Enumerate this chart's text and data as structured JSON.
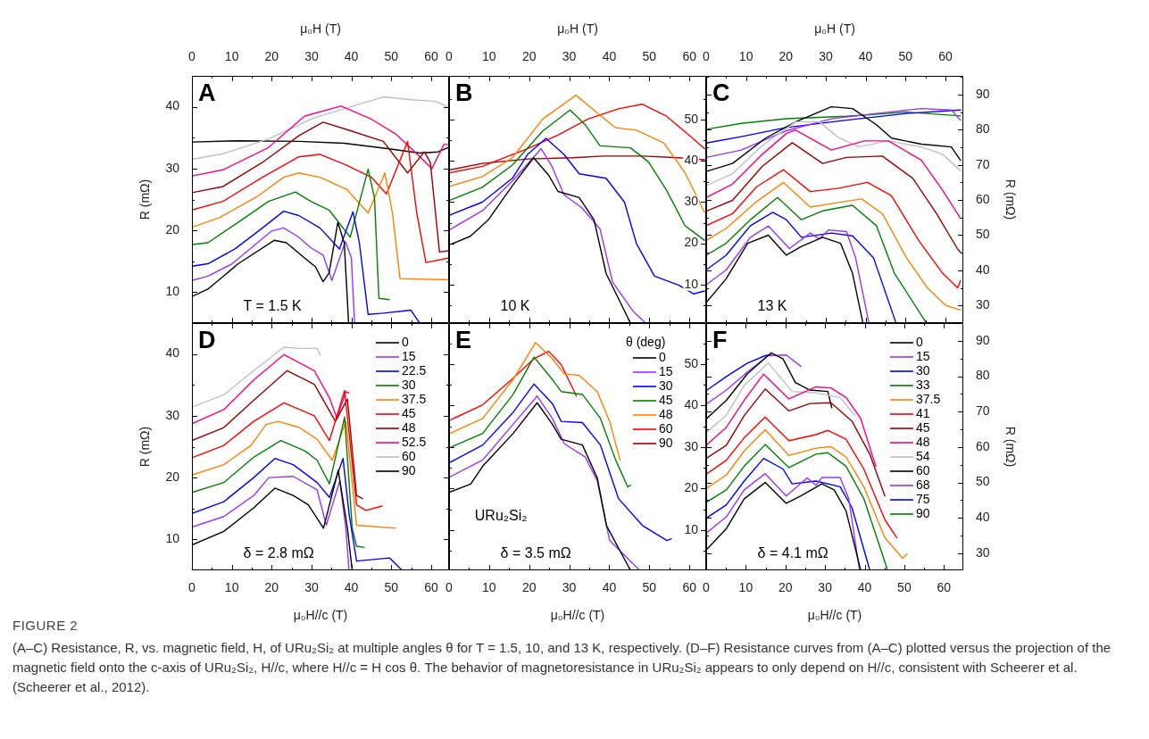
{
  "chart_data": [
    {
      "type": "line",
      "title": "A",
      "xlabel": "μ₀H (T)",
      "ylabel": "R (mΩ)",
      "marker": "none",
      "line_style": "solid",
      "xlim": [
        0,
        64.5
      ],
      "xticks": [
        0,
        10,
        20,
        30,
        40,
        50,
        60
      ],
      "ylim": [
        5,
        45
      ],
      "yticks": [
        10,
        20,
        30,
        40
      ],
      "annotations": [
        "T = 1.5 K"
      ],
      "series": [
        {
          "color": "#000000",
          "x": [
            0,
            4,
            11.6,
            20.7,
            23.7,
            28.3,
            31,
            32.9,
            34.4,
            36.6,
            38.2,
            39.3
          ],
          "values": [
            9.3,
            10.5,
            14.6,
            18.4,
            18,
            15.5,
            14.1,
            11.7,
            13.1,
            21.3,
            18,
            5
          ]
        },
        {
          "color": "#9933ff",
          "x": [
            0,
            4,
            10.1,
            20,
            23,
            26.8,
            29.8,
            32.9,
            35.1,
            38.5,
            40,
            40.8
          ],
          "values": [
            11.9,
            12.6,
            14.6,
            19.9,
            20.4,
            18.9,
            17.2,
            16,
            11.9,
            18.2,
            15.5,
            5
          ]
        },
        {
          "color": "#0000ff",
          "x": [
            0,
            4,
            10.8,
            17.7,
            23,
            26.8,
            32.1,
            37,
            40.4,
            42,
            44.2,
            48,
            54.9,
            57.1
          ],
          "values": [
            14.2,
            14.6,
            17,
            20.4,
            23.1,
            22.4,
            20.4,
            17,
            23,
            18,
            6.4,
            6.6,
            7.1,
            5
          ]
        },
        {
          "color": "#008000",
          "x": [
            0,
            4,
            11.6,
            19.2,
            26,
            29.8,
            34.4,
            39.7,
            44.2,
            45.8,
            46.9,
            49.5
          ],
          "values": [
            17.7,
            18,
            21.3,
            24.7,
            26.2,
            24.7,
            23.3,
            18.9,
            29.9,
            25.2,
            9,
            8.8
          ]
        },
        {
          "color": "#ff8000",
          "x": [
            0,
            7,
            16.2,
            23,
            26.8,
            32.1,
            38.9,
            44.2,
            48.4,
            50.3,
            52.2,
            64.3
          ],
          "values": [
            20.5,
            22.1,
            25.4,
            28.6,
            29.3,
            28.6,
            26.6,
            22.8,
            29.3,
            22.8,
            12.2,
            12
          ]
        },
        {
          "color": "#ff0000",
          "x": [
            0,
            7.8,
            17.7,
            26.8,
            32.1,
            38.9,
            45,
            48.8,
            54.1,
            56.4,
            58.7,
            64.3
          ],
          "values": [
            23.3,
            24.7,
            28.6,
            31.9,
            32.3,
            30.5,
            28.6,
            25.9,
            34.4,
            22.8,
            14.8,
            15.5
          ]
        },
        {
          "color": "#990000",
          "x": [
            0,
            7.8,
            17.7,
            26.8,
            32.9,
            38.9,
            48,
            54.1,
            58.3,
            59.8,
            62.1,
            64.3
          ],
          "values": [
            26.1,
            27.1,
            31,
            35.3,
            37.5,
            36.3,
            34.4,
            29.3,
            32.7,
            31,
            16.5,
            16.7
          ]
        },
        {
          "color": "#ff0080",
          "x": [
            0,
            7.8,
            19.2,
            28.3,
            37.4,
            45,
            51.1,
            56.4,
            60.2,
            63.2,
            64.3
          ],
          "values": [
            28.8,
            29.8,
            33.4,
            38.5,
            40.1,
            38,
            35.6,
            32.4,
            30,
            33.9,
            33.9
          ]
        },
        {
          "color": "#c0c0c0",
          "x": [
            0,
            7.8,
            19.2,
            30.6,
            40.4,
            48,
            55.6,
            60.9,
            64.3
          ],
          "values": [
            31.5,
            32.4,
            34.8,
            38.2,
            40.1,
            41.6,
            41.1,
            40.9,
            40
          ]
        },
        {
          "color": "#000000",
          "x": [
            0,
            11.6,
            26.8,
            38.2,
            49.5,
            57.1,
            61.7,
            64.3
          ],
          "values": [
            34.3,
            34.5,
            34.4,
            34.1,
            33.2,
            32.5,
            32.7,
            33.4
          ]
        }
      ]
    },
    {
      "type": "line",
      "title": "B",
      "xlabel": "μ₀H (T)",
      "marker": "none",
      "line_style": "solid",
      "xlim": [
        0,
        64.2
      ],
      "xticks": [
        0,
        10,
        20,
        30,
        40,
        50,
        60
      ],
      "y2lim": [
        0.6,
        60.7
      ],
      "y2ticks": [
        10,
        20,
        30,
        40,
        50
      ],
      "annotations": [
        "10 K"
      ],
      "series": [
        {
          "color": "#000000",
          "axis": "y2",
          "x": [
            0,
            5.3,
            9.8,
            15.8,
            21.1,
            24.9,
            27.2,
            32.5,
            36.2,
            39.2,
            45.3
          ],
          "values": [
            19.6,
            21.7,
            25.7,
            34,
            40.8,
            36.5,
            32.6,
            31.1,
            25.7,
            12.7,
            0.6
          ]
        },
        {
          "color": "#9933ff",
          "axis": "y2",
          "x": [
            0,
            8.3,
            15.8,
            23,
            25.7,
            28.7,
            33.2,
            37.7,
            40.8,
            46,
            49.1
          ],
          "values": [
            23.2,
            27.9,
            35.1,
            43,
            38.7,
            31.8,
            28.6,
            23.5,
            10.6,
            3.4,
            0.6
          ]
        },
        {
          "color": "#0000ff",
          "axis": "y2",
          "x": [
            0,
            8.3,
            15.8,
            19.6,
            24.2,
            28.7,
            32.5,
            39.2,
            43.8,
            46.8,
            51.3,
            57.4,
            61.1,
            63.8
          ],
          "values": [
            26.8,
            30,
            35.8,
            41.6,
            45.5,
            41.6,
            36.9,
            35.8,
            30,
            19.9,
            12,
            9.8,
            7.7,
            8.4
          ]
        },
        {
          "color": "#008000",
          "axis": "y2",
          "x": [
            0,
            8.3,
            15.8,
            23.4,
            30.2,
            34,
            37.7,
            45.3,
            49.8,
            54.3,
            58.9,
            63.8
          ],
          "values": [
            30.4,
            33.6,
            39,
            47.3,
            52.4,
            48.8,
            43.7,
            43.2,
            39.8,
            32.9,
            24.3,
            20.7
          ]
        },
        {
          "color": "#ff8000",
          "axis": "y2",
          "x": [
            0,
            8.3,
            15.8,
            23.4,
            31.7,
            37,
            41.5,
            46.8,
            53.6,
            58.9,
            63.8
          ],
          "values": [
            33.8,
            36.2,
            40.8,
            50.2,
            56,
            51.7,
            48.1,
            47.5,
            44.4,
            37.2,
            27.5
          ]
        },
        {
          "color": "#ff0000",
          "axis": "y2",
          "x": [
            0,
            8.3,
            19.6,
            27.2,
            34.7,
            42.3,
            48.3,
            54.3,
            60.4,
            63.8
          ],
          "values": [
            37.1,
            38.7,
            43,
            46.3,
            50.2,
            52.7,
            53.8,
            50.9,
            45.9,
            43
          ]
        },
        {
          "color": "#990000",
          "axis": "y2",
          "x": [
            0,
            8.3,
            19.6,
            30.9,
            38.5,
            48.3,
            57.4,
            63.8
          ],
          "values": [
            37.8,
            39.4,
            40.5,
            40.8,
            41.2,
            41.2,
            40.8,
            40.3
          ]
        }
      ]
    },
    {
      "type": "line",
      "title": "C",
      "xlabel": "μ₀H (T)",
      "y2label": "R (mΩ)",
      "marker": "none",
      "line_style": "solid",
      "xlim": [
        0,
        64.5
      ],
      "xticks": [
        0,
        10,
        20,
        30,
        40,
        50,
        60
      ],
      "y2lim": [
        25,
        95.3
      ],
      "y2ticks": [
        30,
        40,
        50,
        60,
        70,
        80,
        90
      ],
      "annotations": [
        "13 K"
      ],
      "series": [
        {
          "color": "#000000",
          "axis": "y2",
          "x": [
            0,
            5,
            10.4,
            15.6,
            20.1,
            23.9,
            29.2,
            33.7,
            36.7,
            39.3
          ],
          "values": [
            30.8,
            37.6,
            47.7,
            50,
            44.3,
            46.8,
            49.4,
            47.7,
            39.2,
            25.1
          ]
        },
        {
          "color": "#9933ff",
          "axis": "y2",
          "x": [
            0,
            5,
            11.1,
            15.6,
            20.9,
            26.1,
            28.4,
            30.7,
            35.2,
            37.5,
            40.8
          ],
          "values": [
            35.9,
            40.1,
            49.4,
            52.6,
            46.2,
            50.6,
            48.9,
            51.5,
            51,
            43.5,
            25.1
          ]
        },
        {
          "color": "#0000ff",
          "axis": "y2",
          "x": [
            0,
            5,
            11.1,
            16.7,
            20.1,
            23.9,
            31.4,
            36.7,
            42,
            47.6
          ],
          "values": [
            40.1,
            44.3,
            52.7,
            56.5,
            54.4,
            49.4,
            50.6,
            49.8,
            43.5,
            25.1
          ]
        },
        {
          "color": "#008000",
          "axis": "y2",
          "x": [
            0,
            5,
            11.1,
            17.9,
            23.9,
            29.2,
            36.7,
            42.7,
            47.2,
            55.2
          ],
          "values": [
            44.3,
            47.7,
            54.4,
            60.7,
            54.4,
            56.9,
            58.5,
            52.7,
            39.2,
            25.1
          ]
        },
        {
          "color": "#ff8000",
          "axis": "y2",
          "x": [
            0,
            5,
            12.6,
            19.4,
            26.1,
            32.2,
            39,
            44.2,
            50.3,
            55.5,
            60.1,
            63.8
          ],
          "values": [
            48.5,
            51.9,
            59.5,
            65,
            58,
            59.1,
            60.3,
            56.1,
            43.5,
            35,
            30,
            28.7
          ]
        },
        {
          "color": "#ff0000",
          "axis": "y2",
          "x": [
            0,
            6.6,
            12.6,
            19.4,
            26.1,
            32.9,
            40.5,
            46.5,
            53.3,
            59.3,
            63.1,
            63.8
          ],
          "values": [
            52.7,
            56.1,
            63.7,
            68.6,
            62.4,
            63.3,
            65,
            61.2,
            48.5,
            39.2,
            35,
            37.1
          ]
        },
        {
          "color": "#990000",
          "axis": "y2",
          "x": [
            0,
            6.6,
            14.1,
            21.6,
            29.2,
            35.2,
            44.2,
            51.8,
            57.8,
            63.1,
            63.8
          ],
          "values": [
            56.8,
            59.9,
            69.6,
            76.3,
            70.4,
            72.1,
            72.5,
            66.2,
            56.1,
            46,
            45.1
          ]
        },
        {
          "color": "#ff0080",
          "axis": "y2",
          "x": [
            0,
            6.6,
            14.1,
            20.1,
            22.4,
            31.4,
            39.7,
            45.7,
            54,
            59.3,
            63.8
          ],
          "values": [
            60.7,
            64.5,
            73,
            78.9,
            79.9,
            74.2,
            76.8,
            76.8,
            71.3,
            62.8,
            54.8
          ]
        },
        {
          "color": "#c0c0c0",
          "axis": "y2",
          "x": [
            0,
            6.6,
            14.1,
            22.4,
            28.4,
            32.9,
            38.2,
            45.7,
            54,
            59.3,
            63.8
          ],
          "values": [
            64.1,
            67.5,
            75.5,
            82.2,
            82.2,
            78,
            75.1,
            76.8,
            75.1,
            73,
            68.3
          ]
        },
        {
          "color": "#000000",
          "axis": "y2",
          "x": [
            0,
            6.6,
            14.9,
            22.4,
            31.4,
            36.7,
            42.7,
            46.5,
            54,
            61.5,
            63.8
          ],
          "values": [
            68.1,
            70.4,
            77.6,
            82.2,
            86.5,
            86,
            81.4,
            77.6,
            75.9,
            75.1,
            71.3
          ]
        },
        {
          "color": "#9933ff",
          "axis": "y2",
          "x": [
            0,
            8.8,
            20.1,
            31.4,
            42.7,
            54,
            61.5,
            63.8
          ],
          "values": [
            72.1,
            74.2,
            79.7,
            83.1,
            84.6,
            86,
            85.6,
            82.7
          ]
        },
        {
          "color": "#0000ff",
          "axis": "y2",
          "x": [
            0,
            8.8,
            20.1,
            35.2,
            50.3,
            63.8
          ],
          "values": [
            76.2,
            78,
            80.6,
            82.7,
            84.6,
            85.6
          ]
        },
        {
          "color": "#008000",
          "axis": "y2",
          "x": [
            0,
            8.8,
            20.1,
            35.2,
            50.3,
            63.8
          ],
          "values": [
            80.1,
            81.8,
            83.1,
            83.8,
            85,
            83.9
          ]
        }
      ]
    },
    {
      "type": "line",
      "title": "D",
      "xlabel": "μ₀H//c (T)",
      "ylabel": "R (mΩ)",
      "marker": "none",
      "line_style": "solid",
      "legend": "top right",
      "xlim": [
        0,
        64.5
      ],
      "xticks": [
        0,
        10,
        20,
        30,
        40,
        50,
        60
      ],
      "ylim": [
        5,
        45
      ],
      "yticks": [
        10,
        20,
        30,
        40
      ],
      "annotations": [
        "δ = 2.8 mΩ"
      ],
      "series": [
        {
          "name": "0",
          "color": "#000000",
          "x": [
            0,
            8,
            15.5,
            20.8,
            25.4,
            29.2,
            33,
            36.7,
            39,
            40.2
          ],
          "values": [
            9.1,
            11.3,
            15.1,
            18.3,
            17.1,
            15.6,
            11.8,
            21.2,
            11.8,
            5
          ]
        },
        {
          "name": "15",
          "color": "#9933ff",
          "x": [
            0,
            8,
            15.5,
            19.3,
            25.4,
            31.4,
            33.7,
            37.1,
            38.6,
            39.4
          ],
          "values": [
            12,
            13.7,
            17.1,
            20,
            20.2,
            18,
            12.3,
            19.5,
            11.8,
            5
          ]
        },
        {
          "name": "22.5",
          "color": "#0000ff",
          "x": [
            0,
            8,
            15.5,
            20.8,
            25.4,
            31.4,
            34.5,
            37.9,
            39.4,
            41.3,
            49.6,
            52.7
          ],
          "values": [
            14.2,
            16.1,
            20,
            23.1,
            22.1,
            19.2,
            16.8,
            23.1,
            14.2,
            6.5,
            7,
            5
          ]
        },
        {
          "name": "30",
          "color": "#008000",
          "x": [
            0,
            8,
            15.5,
            22.3,
            28.4,
            31.4,
            34.5,
            38.3,
            40.2,
            41.3,
            43.2
          ],
          "values": [
            17.6,
            19.2,
            23.3,
            26,
            24.3,
            22.8,
            19,
            29.8,
            11.8,
            8.9,
            8.7
          ]
        },
        {
          "name": "37.5",
          "color": "#ff8000",
          "x": [
            0,
            8,
            14.8,
            18.6,
            21.6,
            26.9,
            31.4,
            35.2,
            38.6,
            41.3,
            51.1
          ],
          "values": [
            20.4,
            22.1,
            25.2,
            28.6,
            29.1,
            28.1,
            26.2,
            22.8,
            29.1,
            12.3,
            11.8
          ]
        },
        {
          "name": "45",
          "color": "#ff0000",
          "x": [
            0,
            8,
            15.5,
            23.1,
            30.7,
            34.5,
            38.3,
            41.3,
            43.6,
            47.7
          ],
          "values": [
            23.2,
            25.2,
            29.1,
            32.1,
            30,
            26,
            34.1,
            15.6,
            14.7,
            15.4
          ]
        },
        {
          "name": "48",
          "color": "#990000",
          "x": [
            0,
            8,
            15.5,
            23.9,
            30.7,
            36,
            39,
            41.3,
            42.8
          ],
          "values": [
            26,
            28.1,
            32.5,
            37.3,
            35.1,
            29.1,
            32.7,
            17.1,
            16.6
          ]
        },
        {
          "name": "52.5",
          "color": "#ff0080",
          "x": [
            0,
            8,
            15.5,
            23.1,
            30.7,
            34.5,
            36.4,
            38.6,
            39.4
          ],
          "values": [
            28.7,
            31,
            35.8,
            39.9,
            37.3,
            32.9,
            29.6,
            33.9,
            33.7
          ]
        },
        {
          "name": "60",
          "color": "#c0c0c0",
          "x": [
            0,
            8,
            15.5,
            23.1,
            26.9,
            31.4,
            32.2
          ],
          "values": [
            31.4,
            33.4,
            37.3,
            41.1,
            40.9,
            40.9,
            39.8
          ]
        },
        {
          "name": "90",
          "color": "#000000"
        }
      ]
    },
    {
      "type": "line",
      "title": "E",
      "xlabel": "μ₀H//c (T)",
      "marker": "none",
      "line_style": "solid",
      "legend": "top right",
      "legend_title": "θ (deg)",
      "xlim": [
        0,
        64.2
      ],
      "xticks": [
        0,
        10,
        20,
        30,
        40,
        50,
        60
      ],
      "y2lim": [
        0.3,
        59.9
      ],
      "y2ticks": [
        10,
        20,
        30,
        40,
        50
      ],
      "annotations": [
        "URu₂Si₂",
        "δ = 3.5 mΩ"
      ],
      "series": [
        {
          "name": "0",
          "color": "#000000",
          "axis": "y2",
          "x": [
            0,
            5.4,
            8.4,
            16,
            22,
            25.8,
            28,
            33.3,
            37,
            39.3,
            45.3
          ],
          "values": [
            19.1,
            21.1,
            25.4,
            33.3,
            40.7,
            35.5,
            31.9,
            30.5,
            22.6,
            11.1,
            0.3
          ]
        },
        {
          "name": "15",
          "color": "#9933ff",
          "axis": "y2",
          "x": [
            0,
            8.4,
            16,
            22,
            25.8,
            28.8,
            34,
            37,
            40.1,
            47.6
          ],
          "values": [
            22.7,
            26.9,
            35.5,
            42.3,
            36.9,
            30.8,
            27.6,
            21.9,
            7.5,
            0.3
          ]
        },
        {
          "name": "30",
          "color": "#0000ff",
          "axis": "y2",
          "x": [
            0,
            8.4,
            16,
            21.2,
            25.8,
            28,
            33.3,
            37.8,
            42.3,
            48.3,
            54.4,
            55.5
          ],
          "values": [
            26.2,
            30.5,
            38.4,
            45.2,
            40.5,
            36.2,
            35.9,
            30.5,
            17.6,
            11.1,
            7.5,
            7.9
          ]
        },
        {
          "name": "45",
          "color": "#008000",
          "axis": "y2",
          "x": [
            0,
            8.4,
            16,
            21.2,
            25.8,
            28,
            33.3,
            37.8,
            41.6,
            44.6,
            45.3
          ],
          "values": [
            29.8,
            33.3,
            42.7,
            51.7,
            46.3,
            43.4,
            42.7,
            36.9,
            26.9,
            20.4,
            20.8
          ]
        },
        {
          "name": "48",
          "color": "#ff8000",
          "axis": "y2",
          "x": [
            0,
            8.4,
            16,
            21.6,
            25.8,
            28.8,
            32.5,
            37,
            40.1,
            42.7
          ],
          "values": [
            33.2,
            36.9,
            46.3,
            55.2,
            51.3,
            47.6,
            47.3,
            43.4,
            36.2,
            26.9
          ]
        },
        {
          "name": "60",
          "color": "#ff0000",
          "axis": "y2",
          "x": [
            0,
            8.4,
            16,
            21.2,
            24.9,
            28,
            31.8
          ],
          "values": [
            36.4,
            40.2,
            46.6,
            51.3,
            53.1,
            49.9,
            42.3
          ]
        },
        {
          "name": "90",
          "color": "#990000",
          "axis": "y2"
        }
      ]
    },
    {
      "type": "line",
      "title": "F",
      "xlabel": "μ₀H//c (T)",
      "y2label": "R (mΩ)",
      "marker": "none",
      "line_style": "solid",
      "legend": "top right",
      "xlim": [
        0,
        64.9
      ],
      "xticks": [
        0,
        10,
        20,
        30,
        40,
        50,
        60
      ],
      "y2lim": [
        25.2,
        95
      ],
      "y2ticks": [
        30,
        40,
        50,
        60,
        70,
        80,
        90
      ],
      "annotations": [
        "δ = 4.1 mΩ"
      ],
      "series": [
        {
          "name": "0",
          "color": "#000000",
          "axis": "y2",
          "x": [
            0,
            5.1,
            9.6,
            14.9,
            20.2,
            23.9,
            29.2,
            32.3,
            35.3,
            39
          ],
          "values": [
            30.9,
            37,
            45.4,
            50,
            44.1,
            46.2,
            49.6,
            47.9,
            42,
            25.2
          ]
        },
        {
          "name": "15",
          "color": "#9933ff",
          "axis": "y2",
          "x": [
            0,
            5.1,
            9.6,
            14.9,
            20.2,
            25.5,
            27.7,
            29.2,
            33.8,
            36,
            38.7
          ],
          "values": [
            35.7,
            40.3,
            47.9,
            52.5,
            46.2,
            51.3,
            49.2,
            51.4,
            51.4,
            45.4,
            25.2
          ]
        },
        {
          "name": "30",
          "color": "#0000ff",
          "axis": "y2",
          "x": [
            0,
            5.1,
            9.6,
            14.5,
            19.4,
            21.7,
            27.7,
            33.8,
            36.8,
            41.3
          ],
          "values": [
            39.9,
            43.7,
            50.4,
            56.8,
            53.8,
            49.6,
            50.4,
            48.8,
            42.9,
            25.2
          ]
        },
        {
          "name": "33",
          "color": "#008000",
          "axis": "y2",
          "x": [
            0,
            5.1,
            9.6,
            14.9,
            20.9,
            27.7,
            30.7,
            35.3,
            39.8,
            45.8
          ],
          "values": [
            44.4,
            47.9,
            54.6,
            60.7,
            54.2,
            58,
            58.4,
            54.6,
            45.4,
            25.2
          ]
        },
        {
          "name": "37.5",
          "color": "#ff8000",
          "axis": "y2",
          "x": [
            0,
            5.1,
            9.6,
            14.9,
            20.9,
            27.7,
            31.5,
            35.3,
            39.8,
            45.1,
            49.6,
            50.7
          ],
          "values": [
            48.3,
            52.1,
            58.9,
            64.9,
            57.6,
            59.7,
            60.1,
            57.2,
            48.8,
            34.4,
            28.6,
            29.8
          ]
        },
        {
          "name": "41",
          "color": "#ff0000",
          "axis": "y2",
          "x": [
            0,
            5.1,
            9.6,
            14.9,
            20.9,
            27.7,
            30.7,
            35.3,
            39.8,
            45.1,
            48.1
          ],
          "values": [
            52.3,
            56.3,
            62.6,
            68.5,
            61.8,
            63.5,
            64.7,
            62.2,
            53.8,
            39.5,
            34.4
          ]
        },
        {
          "name": "45",
          "color": "#990000",
          "axis": "y2",
          "x": [
            0,
            5.1,
            9.6,
            14.9,
            20.9,
            26.2,
            31.5,
            36.8,
            41.3,
            45.1
          ],
          "values": [
            56.8,
            60.5,
            68.9,
            76.4,
            70.2,
            72.3,
            72.5,
            67.3,
            58,
            46.2
          ]
        },
        {
          "name": "48",
          "color": "#ff0080",
          "axis": "y2",
          "x": [
            0,
            5.1,
            9.6,
            14.5,
            20.9,
            27.7,
            31.5,
            35.3,
            39,
            42.8
          ],
          "values": [
            60.5,
            65.6,
            73.2,
            80.6,
            73.6,
            77,
            76.7,
            74,
            68.1,
            54.6
          ]
        },
        {
          "name": "54",
          "color": "#c0c0c0",
          "axis": "y2",
          "x": [
            0,
            5.1,
            9.6,
            15.7,
            21.7,
            27.7,
            33.8,
            37.5
          ],
          "values": [
            64.1,
            69,
            77.4,
            83.7,
            75.7,
            75.3,
            74,
            69
          ]
        },
        {
          "name": "60",
          "color": "#000000",
          "axis": "y2",
          "x": [
            0,
            5.1,
            10.4,
            16.4,
            19.4,
            22.5,
            26.2,
            30.7,
            31.7
          ],
          "values": [
            67.9,
            73.2,
            80.7,
            86.6,
            84.9,
            78.2,
            76.1,
            75.7,
            71.1
          ]
        },
        {
          "name": "68",
          "color": "#9933ff",
          "axis": "y2",
          "x": [
            0,
            5.1,
            10.4,
            15.7,
            20.2,
            23.9
          ],
          "values": [
            72.1,
            76.1,
            81.2,
            85.8,
            86,
            82.8
          ]
        },
        {
          "name": "75",
          "color": "#0000ff",
          "axis": "y2",
          "x": [
            0,
            5.1,
            10.4,
            14.9,
            16.4
          ],
          "values": [
            75.9,
            79.9,
            83.7,
            85.8,
            86
          ]
        },
        {
          "name": "90",
          "color": "#008000",
          "axis": "y2"
        }
      ]
    },
    {
      "type": "other",
      "title": "FIGURE 2",
      "annotations": [
        "(A–C) Resistance, R, vs. magnetic field, H, of URu₂Si₂ at multiple angles θ for T = 1.5, 10, and 13 K, respectively. (D–F) Resistance curves from (A–C) plotted versus the projection of the magnetic field onto the c-axis of URu₂Si₂, H//c, where H//c = H cos θ. The behavior of magnetoresistance in URu₂Si₂ appears to only depend on H//c, consistent with Scheerer et al. (Scheerer et al., 2012)."
      ]
    }
  ]
}
